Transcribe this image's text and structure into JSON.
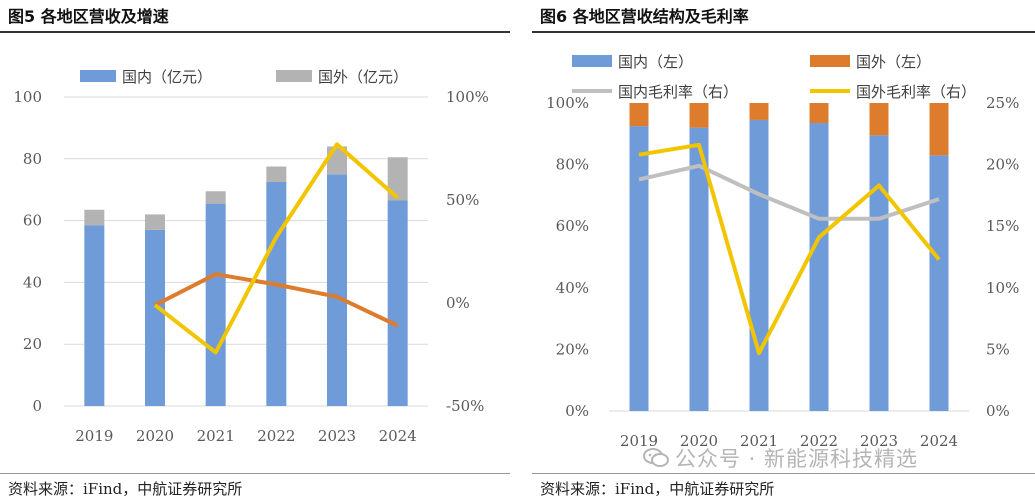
{
  "left": {
    "title": "图5  各地区营收及增速",
    "source": "资料来源：iFind，中航证券研究所"
  },
  "right": {
    "title": "图6  各地区营收结构及毛利率",
    "source": "资料来源：iFind，中航证券研究所"
  },
  "watermark": {
    "text": "公众号 · 新能源科技精选",
    "icon": "wechat-icon"
  },
  "colors": {
    "blue": "#6f9bd8",
    "gray": "#b3b3b3",
    "orange": "#dd7c2d",
    "yellow": "#f2c500",
    "gray_line": "#bfbfbf"
  },
  "chart_data": [
    {
      "type": "bar",
      "stacked": true,
      "categories": [
        "2019",
        "2020",
        "2021",
        "2022",
        "2023",
        "2024"
      ],
      "series": [
        {
          "name": "国内（亿元）",
          "axis": "left",
          "kind": "bar",
          "values": [
            58.5,
            57,
            65.5,
            72.5,
            75,
            66.5
          ]
        },
        {
          "name": "国外（亿元）",
          "axis": "left",
          "kind": "bar",
          "values": [
            5,
            5,
            4,
            5,
            9,
            14
          ]
        },
        {
          "name": "",
          "axis": "right",
          "kind": "line",
          "color": "orange",
          "values": [
            null,
            -1,
            14,
            9,
            3,
            -11
          ]
        },
        {
          "name": "",
          "axis": "right",
          "kind": "line",
          "color": "yellow",
          "values": [
            null,
            -1,
            -24,
            32,
            77,
            51
          ]
        }
      ],
      "y_left": {
        "min": 0,
        "max": 100,
        "ticks": [
          "0",
          "20",
          "40",
          "60",
          "80",
          "100"
        ]
      },
      "y_right": {
        "min": -50,
        "max": 100,
        "ticks": [
          "-50%",
          "0%",
          "50%",
          "100%"
        ]
      },
      "legend_position": "top",
      "grid": true
    },
    {
      "type": "bar",
      "stacked": true,
      "categories": [
        "2019",
        "2020",
        "2021",
        "2022",
        "2023",
        "2024"
      ],
      "series": [
        {
          "name": "国内（左）",
          "axis": "left",
          "kind": "bar",
          "values": [
            92.5,
            92,
            94.5,
            93.5,
            89.5,
            83
          ]
        },
        {
          "name": "国外（左）",
          "axis": "left",
          "kind": "bar",
          "values": [
            7.5,
            8,
            5.5,
            6.5,
            10.5,
            17
          ]
        },
        {
          "name": "国内毛利率（右）",
          "axis": "right",
          "kind": "line",
          "color": "gray_line",
          "values": [
            18.8,
            19.9,
            17.6,
            15.6,
            15.6,
            17.2
          ]
        },
        {
          "name": "国外毛利率（右）",
          "axis": "right",
          "kind": "line",
          "color": "yellow",
          "values": [
            20.8,
            21.6,
            4.7,
            14.1,
            18.3,
            12.3
          ]
        }
      ],
      "y_left": {
        "min": 0,
        "max": 100,
        "ticks": [
          "0%",
          "20%",
          "40%",
          "60%",
          "80%",
          "100%"
        ]
      },
      "y_right": {
        "min": 0,
        "max": 25,
        "ticks": [
          "0%",
          "5%",
          "10%",
          "15%",
          "20%",
          "25%"
        ]
      },
      "legend_position": "top",
      "grid": false
    }
  ]
}
